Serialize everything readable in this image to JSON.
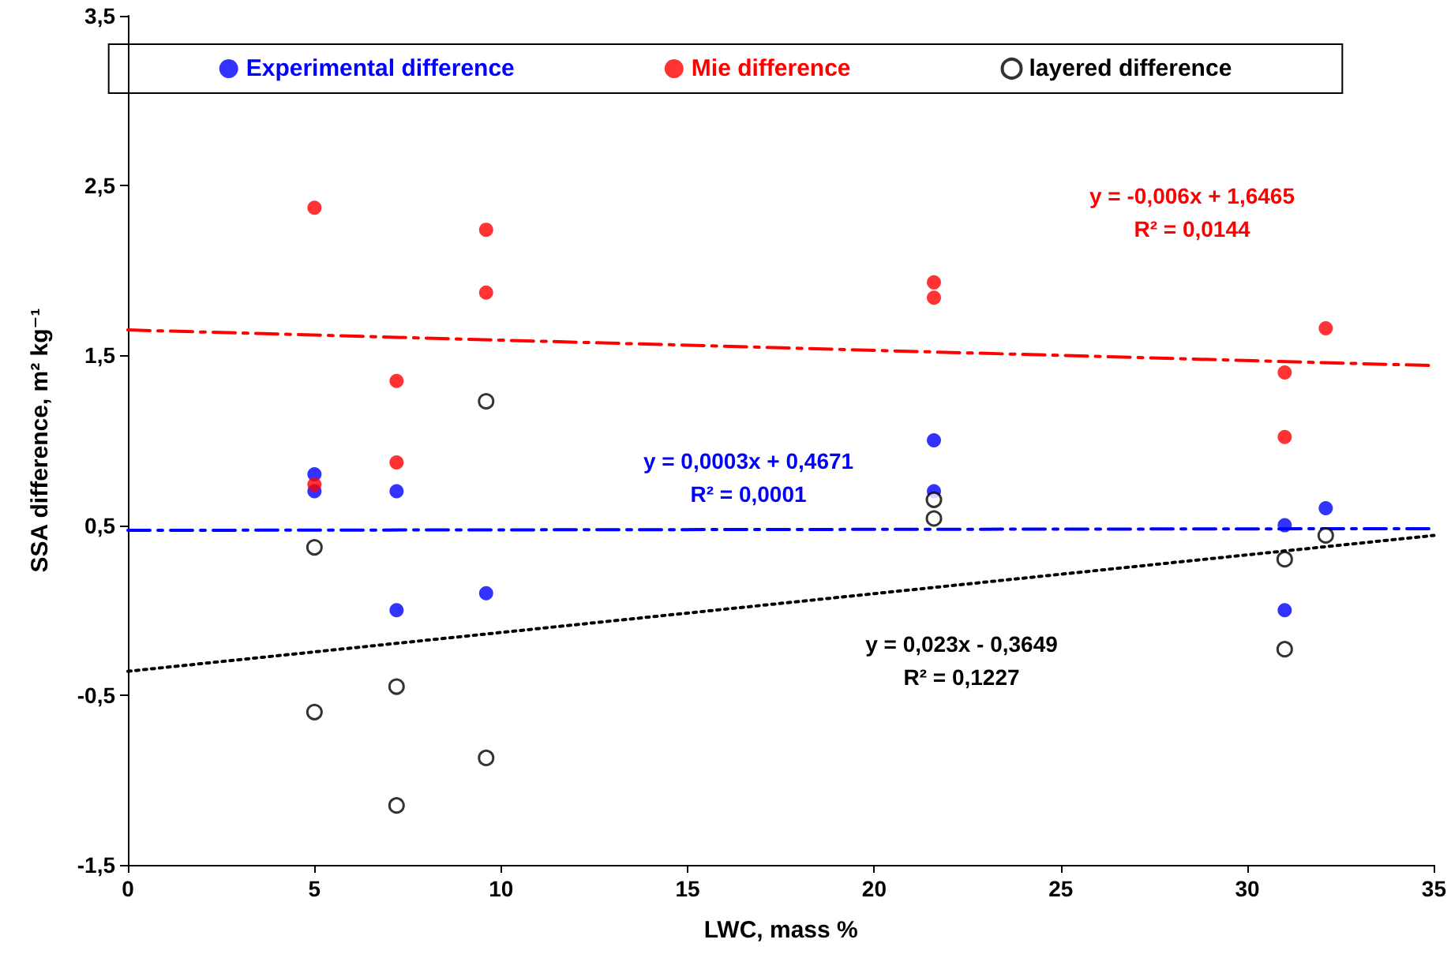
{
  "chart_data": {
    "type": "scatter",
    "xlabel": "LWC, mass %",
    "ylabel": "SSA difference, m² kg⁻¹",
    "xlim": [
      0,
      35
    ],
    "xticks": [
      0,
      5,
      10,
      15,
      20,
      25,
      30,
      35
    ],
    "ylim": [
      -1.5,
      3.5
    ],
    "yticks": [
      {
        "value": -1.5,
        "label": "-1,5"
      },
      {
        "value": -0.5,
        "label": "-0,5"
      },
      {
        "value": 0.5,
        "label": "0,5"
      },
      {
        "value": 1.5,
        "label": "1,5"
      },
      {
        "value": 2.5,
        "label": "2,5"
      },
      {
        "value": 3.5,
        "label": "3,5"
      }
    ],
    "grid": false,
    "legend": "top",
    "marker": "circle",
    "series": [
      {
        "name": "Experimental difference",
        "color": "#0000ff",
        "x": [
          5,
          5,
          7.2,
          7.2,
          9.6,
          21.6,
          21.6,
          31,
          31,
          32.1
        ],
        "values": [
          0.8,
          0.7,
          0.7,
          0.0,
          0.1,
          1.0,
          0.7,
          0.5,
          0.0,
          0.6
        ]
      },
      {
        "name": "Mie difference",
        "color": "#ff0000",
        "x": [
          5,
          5,
          7.2,
          7.2,
          9.6,
          9.6,
          21.6,
          21.6,
          31,
          31,
          32.1
        ],
        "values": [
          2.37,
          0.74,
          1.35,
          0.87,
          2.24,
          1.87,
          1.93,
          1.84,
          1.4,
          1.02,
          1.66
        ]
      },
      {
        "name": "layered difference",
        "color": "#000000",
        "x": [
          5,
          5,
          7.2,
          7.2,
          9.6,
          9.6,
          21.6,
          21.6,
          31,
          31,
          32.1
        ],
        "values": [
          0.37,
          -0.6,
          -0.45,
          -1.15,
          1.23,
          -0.87,
          0.65,
          0.54,
          0.3,
          -0.23,
          0.44
        ]
      },
      {
        "type": "line",
        "color": "#ff0000",
        "line_style": "dashed",
        "marker": "none",
        "x": [
          0,
          35
        ],
        "values": [
          1.65,
          1.44
        ]
      },
      {
        "type": "line",
        "color": "#0000ff",
        "line_style": "dashed",
        "marker": "none",
        "x": [
          0,
          35
        ],
        "values": [
          0.47,
          0.48
        ]
      },
      {
        "type": "line",
        "color": "#000000",
        "line_style": "dotted",
        "marker": "none",
        "x": [
          0,
          35
        ],
        "values": [
          -0.36,
          0.44
        ]
      }
    ],
    "annotations": [
      "y = -0,006x + 1,6465",
      "R² = 0,0144",
      "y = 0,0003x + 0,4671",
      "R² = 0,0001",
      "y = 0,023x - 0,3649",
      "R² = 0,1227"
    ]
  }
}
